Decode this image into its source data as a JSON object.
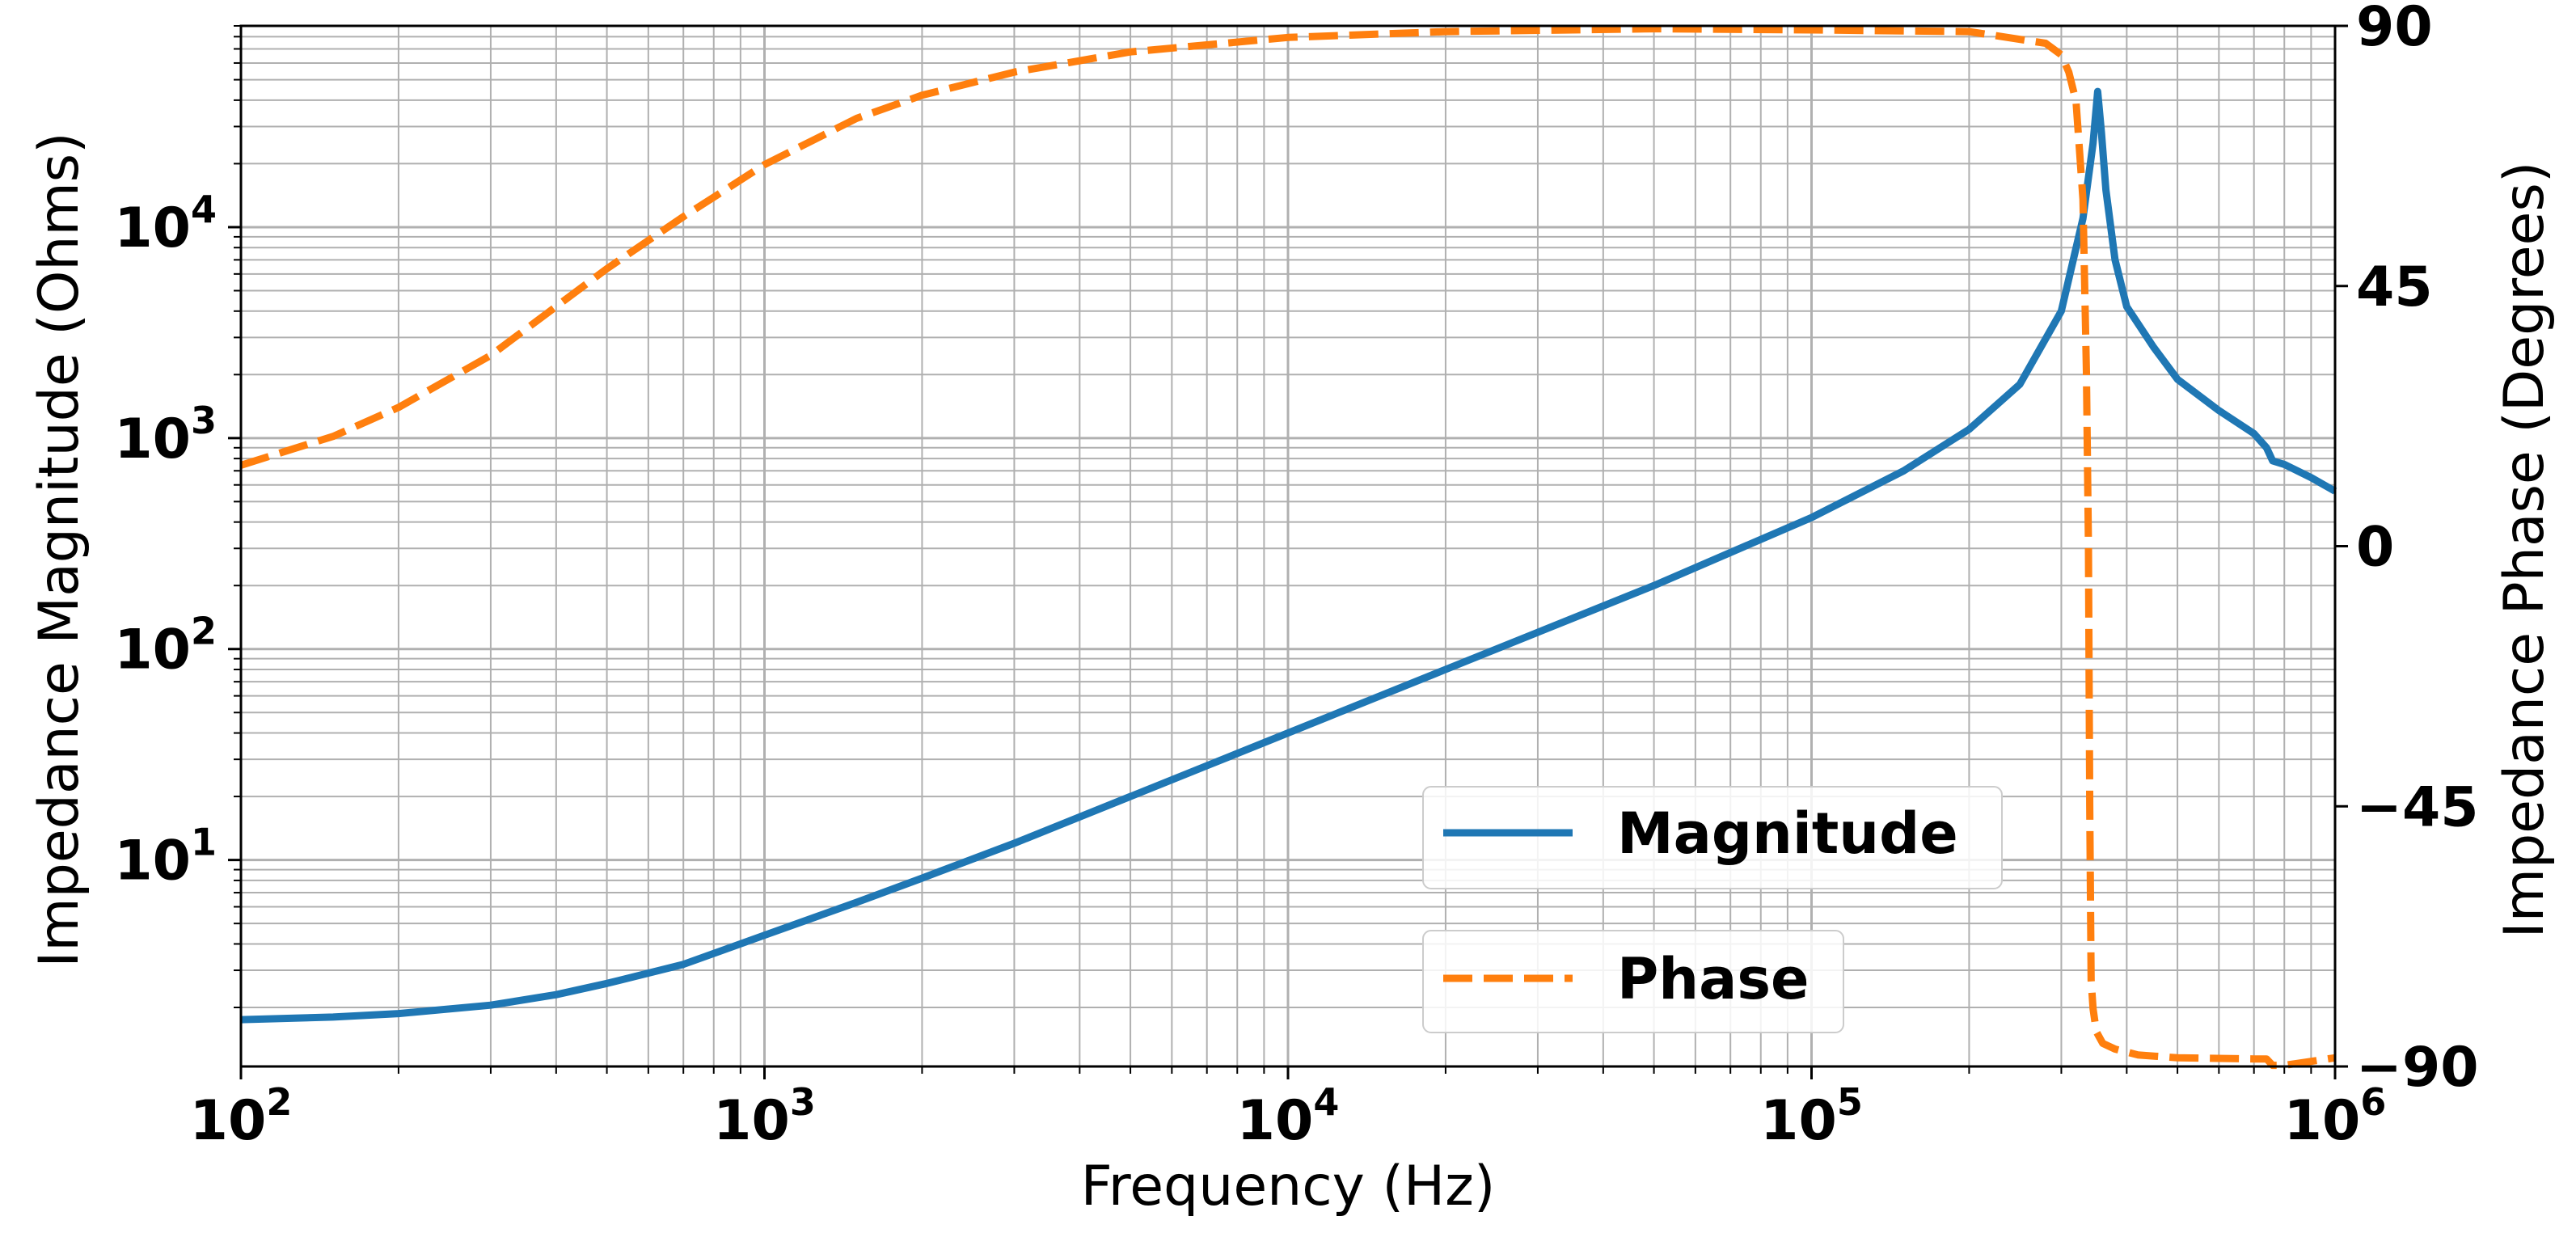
{
  "chart_data": {
    "type": "line",
    "xlabel": "Frequency (Hz)",
    "ylabel_left": "Impedance Magnitude (Ohms)",
    "ylabel_right": "Impedance Phase (Degrees)",
    "x_scale": "log",
    "y_left_scale": "log",
    "xlim": [
      100,
      1000000
    ],
    "ylim_left": [
      1.05,
      90000
    ],
    "ylim_right": [
      -90,
      90
    ],
    "x_ticks": [
      {
        "base": "10",
        "exp": "2"
      },
      {
        "base": "10",
        "exp": "3"
      },
      {
        "base": "10",
        "exp": "4"
      },
      {
        "base": "10",
        "exp": "5"
      },
      {
        "base": "10",
        "exp": "6"
      }
    ],
    "y_left_ticks": [
      {
        "base": "10",
        "exp": "1"
      },
      {
        "base": "10",
        "exp": "2"
      },
      {
        "base": "10",
        "exp": "3"
      },
      {
        "base": "10",
        "exp": "4"
      }
    ],
    "y_right_ticks": [
      "90",
      "45",
      "0",
      "−45",
      "−90"
    ],
    "grid": "both, major and minor",
    "legend_placement": "lower-center",
    "series": [
      {
        "name": "Magnitude",
        "label": "Magnitude",
        "axis": "left",
        "color": "#1f77b4",
        "style": "solid",
        "x": [
          100,
          150,
          200,
          300,
          400,
          500,
          700,
          1000,
          1500,
          2000,
          3000,
          5000,
          7000,
          10000,
          20000,
          50000,
          100000,
          150000,
          200000,
          250000,
          300000,
          330000,
          345000,
          352000,
          358000,
          365000,
          380000,
          400000,
          450000,
          500000,
          600000,
          700000,
          740000,
          760000,
          800000,
          900000,
          1000000
        ],
        "values": [
          1.75,
          1.8,
          1.87,
          2.05,
          2.3,
          2.6,
          3.2,
          4.4,
          6.3,
          8.2,
          12,
          20,
          28,
          40,
          80,
          200,
          420,
          700,
          1100,
          1800,
          4000,
          11000,
          25000,
          44000,
          28000,
          15000,
          7000,
          4200,
          2700,
          1900,
          1350,
          1050,
          900,
          780,
          750,
          650,
          560
        ]
      },
      {
        "name": "Phase",
        "label": "Phase",
        "axis": "right",
        "color": "#ff7f0e",
        "style": "dashed",
        "x": [
          100,
          150,
          200,
          300,
          500,
          700,
          1000,
          1500,
          2000,
          3000,
          5000,
          10000,
          20000,
          50000,
          100000,
          200000,
          280000,
          300000,
          310000,
          320000,
          330000,
          335000,
          338000,
          340000,
          342000,
          345000,
          350000,
          360000,
          380000,
          420000,
          500000,
          700000,
          740000,
          760000,
          800000,
          1000000
        ],
        "values": [
          14,
          19,
          24,
          33,
          48,
          57,
          66,
          74,
          78,
          82,
          85.5,
          88,
          89,
          89.5,
          89.3,
          89,
          87,
          85,
          82,
          77,
          60,
          30,
          0,
          -45,
          -75,
          -80,
          -84,
          -86,
          -87,
          -88,
          -88.5,
          -88.7,
          -88.7,
          -89.8,
          -89.8,
          -88.5
        ]
      }
    ]
  }
}
